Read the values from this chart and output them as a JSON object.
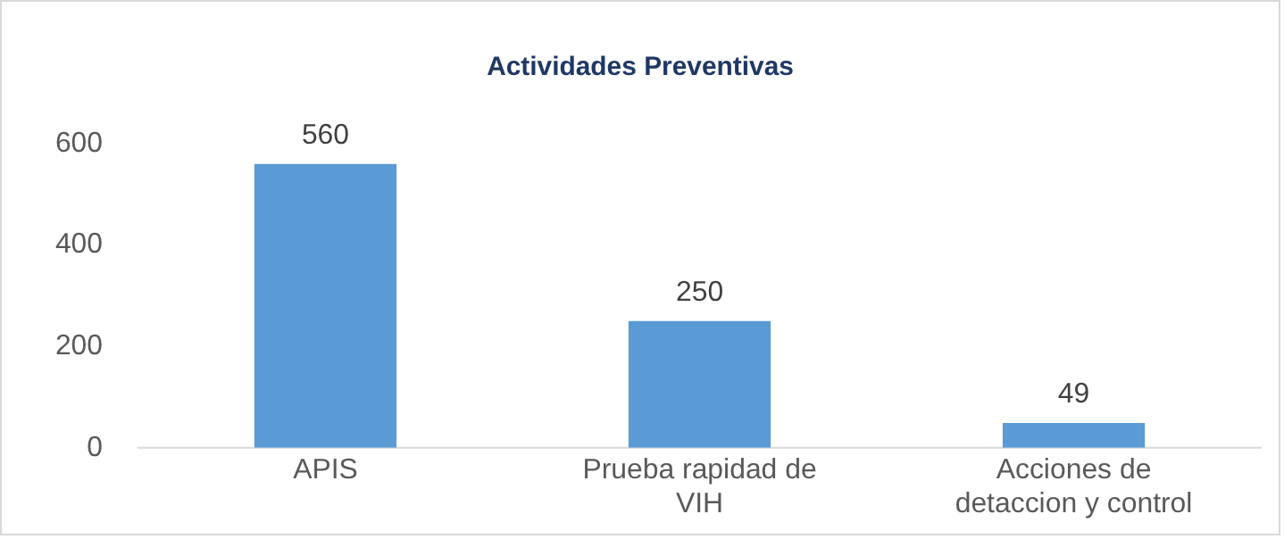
{
  "chart_data": {
    "type": "bar",
    "title": "Actividades Preventivas",
    "categories": [
      "APIS",
      "Prueba rapidad de VIH",
      "Acciones de detaccion y control"
    ],
    "values": [
      560,
      250,
      49
    ],
    "color": "#5b9bd5",
    "ylim": [
      0,
      600
    ],
    "yticks": [
      0,
      200,
      400,
      600
    ],
    "grid": false,
    "legend": false,
    "data_labels": true
  }
}
